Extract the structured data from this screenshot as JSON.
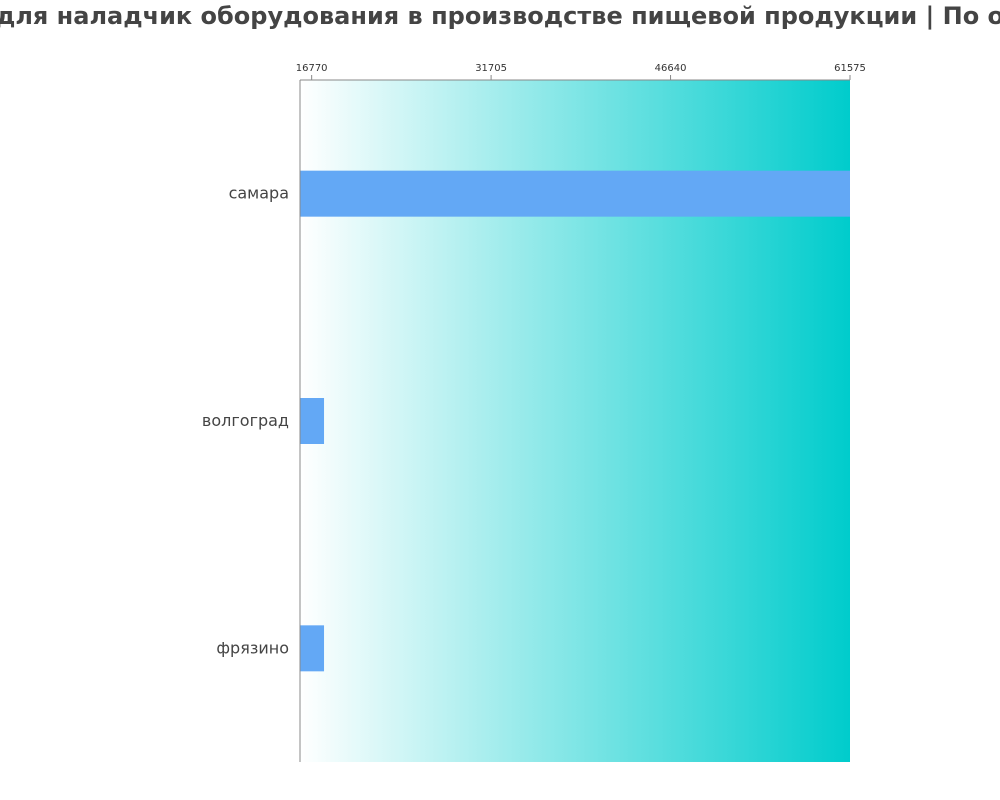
{
  "chart_data": {
    "type": "bar",
    "orientation": "horizontal",
    "title": "для наладчик оборудования в производстве пищевой продукции | По о",
    "categories": [
      "самара",
      "волгоград",
      "фрязино"
    ],
    "values": [
      61575,
      17800,
      17800
    ],
    "xticks": [
      16770,
      31705,
      46640,
      61575
    ],
    "xlim": [
      15800,
      61575
    ],
    "xlabel": "",
    "ylabel": "",
    "grid": false,
    "legend": "none",
    "colors": {
      "bar": "#63a8f5",
      "gradient_start": "#ffffff",
      "gradient_end": "#00cccc",
      "axis": "#888888",
      "text": "#444444"
    }
  }
}
